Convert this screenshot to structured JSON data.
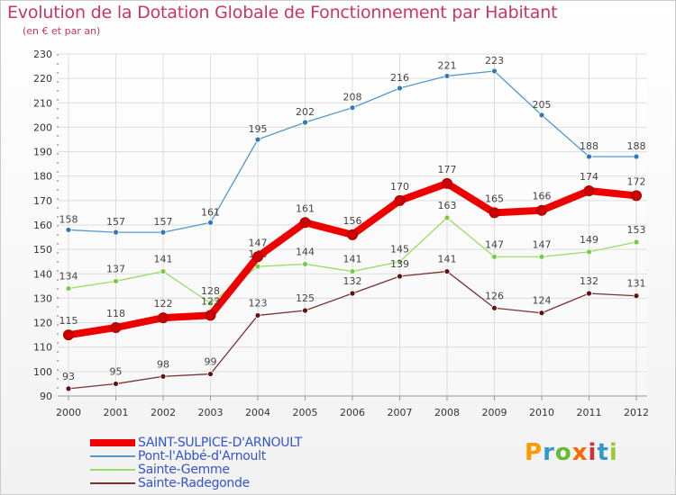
{
  "title": "Evolution de la Dotation Globale de Fonctionnement par Habitant",
  "subtitle": "(en € et par an)",
  "logo": {
    "text": "Proxiti",
    "colors": [
      "#ff9900",
      "#3399cc",
      "#66bb33",
      "#ff6600",
      "#cc3333",
      "#3399cc",
      "#99cc33"
    ]
  },
  "chart_data": {
    "type": "line",
    "title": "Evolution de la Dotation Globale de Fonctionnement par Habitant",
    "subtitle": "(en € et par an)",
    "xlabel": "",
    "ylabel": "",
    "x": [
      "2000",
      "2001",
      "2002",
      "2003",
      "2004",
      "2005",
      "2006",
      "2007",
      "2008",
      "2009",
      "2010",
      "2011",
      "2012"
    ],
    "ylim": [
      90,
      230
    ],
    "yticks": [
      90,
      100,
      110,
      120,
      130,
      140,
      150,
      160,
      170,
      180,
      190,
      200,
      210,
      220,
      230
    ],
    "grid": true,
    "legend_position": "bottom-left",
    "series": [
      {
        "name": "Pont-l'Abbé-d'Arnoult",
        "color": "#5599cc",
        "marker": "#3377bb",
        "values": [
          158,
          157,
          157,
          161,
          195,
          202,
          208,
          216,
          221,
          223,
          205,
          188,
          188
        ]
      },
      {
        "name": "Sainte-Gemme",
        "color": "#99dd66",
        "marker": "#77cc44",
        "values": [
          134,
          137,
          141,
          128,
          143,
          144,
          141,
          145,
          163,
          147,
          147,
          149,
          153
        ]
      },
      {
        "name": "Sainte-Radegonde",
        "color": "#773333",
        "marker": "#661111",
        "values": [
          93,
          95,
          98,
          99,
          123,
          125,
          132,
          139,
          141,
          126,
          124,
          132,
          131
        ]
      },
      {
        "name": "SAINT-SULPICE-D'ARNOULT",
        "color": "#ee0000",
        "marker": "#cc0000",
        "values": [
          115,
          118,
          122,
          123,
          147,
          161,
          156,
          170,
          177,
          165,
          166,
          174,
          172
        ],
        "bold": true
      }
    ],
    "legend_order": [
      "SAINT-SULPICE-D'ARNOULT",
      "Pont-l'Abbé-d'Arnoult",
      "Sainte-Gemme",
      "Sainte-Radegonde"
    ]
  }
}
